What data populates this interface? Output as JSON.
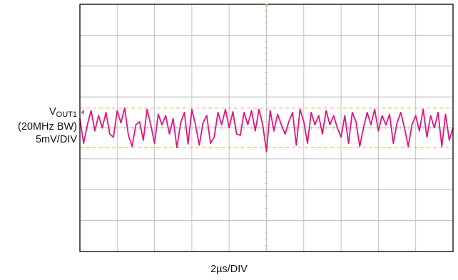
{
  "chart_data": {
    "type": "line",
    "title": "",
    "channel_label": {
      "name": "V",
      "subscript": "OUT1",
      "bandwidth": "(20MHz BW)",
      "scale": "5mV/DIV"
    },
    "xlabel": "2µs/DIV",
    "x_unit": "µs",
    "y_unit": "mV",
    "xlim": [
      0,
      20
    ],
    "ylim": [
      -20,
      20
    ],
    "divisions": {
      "x": 10,
      "y": 8
    },
    "grid": true,
    "channel_marker": "4",
    "reference_levels_mV": [
      3.2,
      -3.2
    ],
    "series": [
      {
        "color": "#e0157f",
        "x": [
          0.0,
          0.2,
          0.4,
          0.6,
          0.8,
          1.0,
          1.2,
          1.4,
          1.6,
          1.8,
          2.0,
          2.2,
          2.4,
          2.6,
          2.8,
          3.0,
          3.2,
          3.4,
          3.6,
          3.8,
          4.0,
          4.2,
          4.4,
          4.6,
          4.8,
          5.0,
          5.2,
          5.4,
          5.6,
          5.8,
          6.0,
          6.2,
          6.4,
          6.6,
          6.8,
          7.0,
          7.2,
          7.4,
          7.6,
          7.8,
          8.0,
          8.2,
          8.4,
          8.6,
          8.8,
          9.0,
          9.2,
          9.4,
          9.6,
          9.8,
          10.0,
          10.2,
          10.4,
          10.6,
          10.8,
          11.0,
          11.2,
          11.4,
          11.6,
          11.8,
          12.0,
          12.2,
          12.4,
          12.6,
          12.8,
          13.0,
          13.2,
          13.4,
          13.6,
          13.8,
          14.0,
          14.2,
          14.4,
          14.6,
          14.8,
          15.0,
          15.2,
          15.4,
          15.6,
          15.8,
          16.0,
          16.2,
          16.4,
          16.6,
          16.8,
          17.0,
          17.2,
          17.4,
          17.6,
          17.8,
          18.0,
          18.2,
          18.4,
          18.6,
          18.8,
          19.0,
          19.2,
          19.4,
          19.6,
          19.8,
          20.0
        ],
        "y": [
          1.5,
          -2.5,
          0.5,
          2.8,
          -0.5,
          2.0,
          0.0,
          2.5,
          -1.0,
          -1.5,
          2.8,
          0.8,
          3.2,
          -1.2,
          -3.0,
          0.5,
          1.0,
          -2.0,
          3.0,
          0.5,
          -2.5,
          2.2,
          0.5,
          2.0,
          -1.0,
          1.5,
          -3.2,
          0.8,
          2.5,
          -2.6,
          3.0,
          0.5,
          -2.8,
          0.8,
          2.0,
          -2.5,
          -1.5,
          2.5,
          0.5,
          3.0,
          0.0,
          2.6,
          -1.0,
          -1.2,
          2.5,
          0.5,
          2.8,
          -0.5,
          3.0,
          0.5,
          -3.8,
          2.8,
          -0.5,
          2.2,
          0.5,
          -1.0,
          1.0,
          2.5,
          -2.8,
          3.0,
          1.0,
          -2.5,
          2.5,
          0.5,
          2.0,
          -1.0,
          2.8,
          0.5,
          2.0,
          0.0,
          -1.5,
          2.0,
          -2.5,
          2.5,
          1.0,
          -3.0,
          0.0,
          2.5,
          0.5,
          3.0,
          -0.5,
          2.0,
          0.5,
          2.2,
          -2.5,
          0.8,
          2.5,
          0.0,
          -3.0,
          0.5,
          2.0,
          -0.5,
          3.0,
          -1.5,
          2.0,
          0.0,
          2.5,
          -3.0,
          2.2,
          -2.0,
          0.0
        ]
      }
    ],
    "colors": {
      "trace": "#e0157f",
      "reference": "#f0a050",
      "grid": "#bdbdbd",
      "frame": "#000000",
      "ticks": "#c0c0c0"
    }
  }
}
